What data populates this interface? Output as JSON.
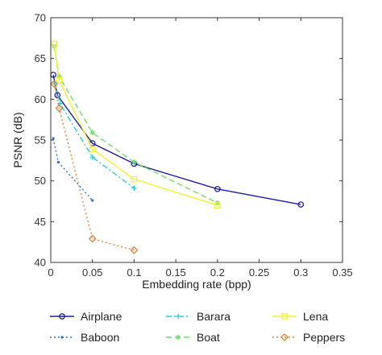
{
  "chart_data": {
    "type": "line",
    "xlabel": "Embedding rate (bpp)",
    "ylabel": "PSNR (dB)",
    "xlim": [
      0,
      0.35
    ],
    "ylim": [
      40,
      70
    ],
    "xticks": [
      "0",
      "0.05",
      "0.1",
      "0.15",
      "0.2",
      "0.25",
      "0.3",
      "0.35"
    ],
    "yticks": [
      "40",
      "45",
      "50",
      "55",
      "60",
      "65",
      "70"
    ],
    "grid": false,
    "legend_position": "bottom",
    "series": [
      {
        "name": "Airplane",
        "color": "#1f1f9e",
        "dash": "solid",
        "marker": "circle",
        "x": [
          0.003,
          0.008,
          0.05,
          0.1,
          0.2,
          0.3
        ],
        "y": [
          63.0,
          60.5,
          54.6,
          52.1,
          49.0,
          47.1
        ]
      },
      {
        "name": "Baboon",
        "color": "#2e6fd6",
        "dash": "dotted",
        "marker": "point",
        "x": [
          0.003,
          0.009,
          0.05
        ],
        "y": [
          55.2,
          52.3,
          47.6
        ]
      },
      {
        "name": "Barara",
        "color": "#2fc9d6",
        "dash": "dashdot",
        "marker": "plus",
        "x": [
          0.005,
          0.011,
          0.05,
          0.1
        ],
        "y": [
          62.0,
          59.5,
          52.9,
          49.1
        ]
      },
      {
        "name": "Boat",
        "color": "#6fdc6f",
        "dash": "dashed",
        "marker": "star",
        "x": [
          0.004,
          0.01,
          0.05,
          0.1,
          0.2
        ],
        "y": [
          66.5,
          62.8,
          55.9,
          52.3,
          47.3
        ]
      },
      {
        "name": "Lena",
        "color": "#f0f030",
        "dash": "solid",
        "marker": "square",
        "x": [
          0.004,
          0.01,
          0.05,
          0.1,
          0.2
        ],
        "y": [
          66.8,
          62.3,
          53.9,
          50.2,
          47.0
        ]
      },
      {
        "name": "Peppers",
        "color": "#d9863a",
        "dash": "dotted",
        "marker": "diamond",
        "x": [
          0.004,
          0.01,
          0.05,
          0.1
        ],
        "y": [
          61.9,
          58.9,
          42.9,
          41.5
        ]
      }
    ]
  }
}
